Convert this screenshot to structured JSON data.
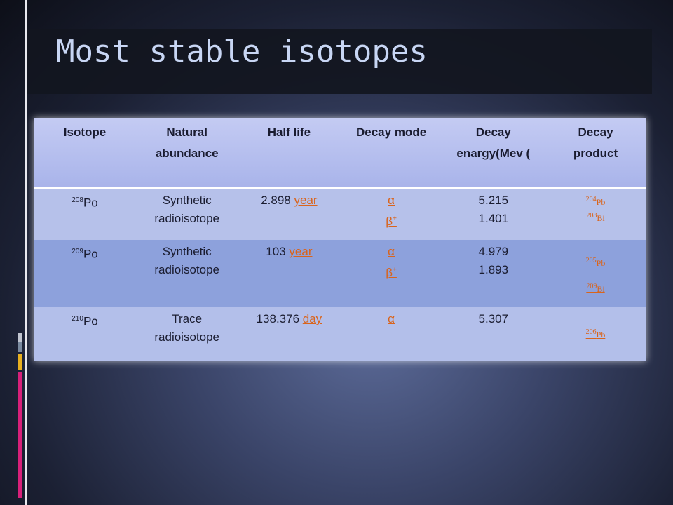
{
  "title": "Most stable isotopes",
  "table": {
    "header": [
      "Isotope",
      "Natural abundance",
      "Half life",
      "Decay mode",
      "Decay enargy(Mev (",
      "Decay product"
    ],
    "rows": [
      {
        "isotope": {
          "mass": "208",
          "symbol": "Po"
        },
        "abundance": "Synthetic radioisotope",
        "half_life": {
          "value": "2.898",
          "unit": "year"
        },
        "decay_modes": [
          {
            "symbol": "α"
          },
          {
            "symbol": "β",
            "sup": "+"
          }
        ],
        "energies": [
          "5.215",
          "1.401"
        ],
        "products": [
          {
            "mass": "204",
            "symbol": "Pb"
          },
          {
            "mass": "208",
            "symbol": "Bi"
          }
        ]
      },
      {
        "isotope": {
          "mass": "209",
          "symbol": "Po"
        },
        "abundance": "Synthetic radioisotope",
        "half_life": {
          "value": "103",
          "unit": "year"
        },
        "decay_modes": [
          {
            "symbol": "α"
          },
          {
            "symbol": "β",
            "sup": "+"
          }
        ],
        "energies": [
          "4.979",
          "1.893"
        ],
        "products": [
          {
            "mass": "205",
            "symbol": "Pb"
          },
          {
            "mass": "209",
            "symbol": "Bi"
          }
        ]
      },
      {
        "isotope": {
          "mass": "210",
          "symbol": "Po"
        },
        "abundance": "Trace radioisotope",
        "half_life": {
          "value": "138.376",
          "unit": "day"
        },
        "decay_modes": [
          {
            "symbol": "α"
          }
        ],
        "energies": [
          "5.307"
        ],
        "products": [
          {
            "mass": "206",
            "symbol": "Pb"
          }
        ]
      }
    ]
  }
}
